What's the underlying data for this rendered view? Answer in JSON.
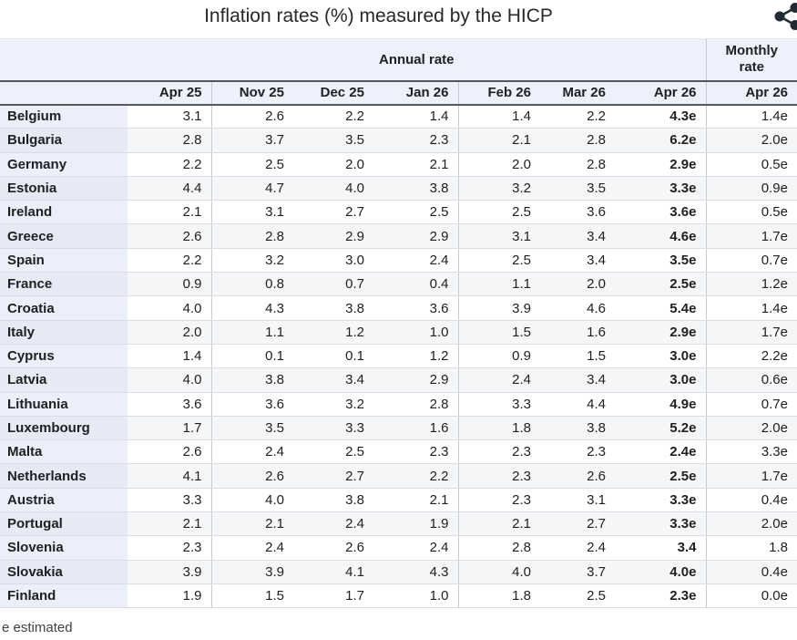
{
  "title": "Inflation rates (%) measured by the HICP",
  "share_icon": "share-icon",
  "chart_data": {
    "type": "table",
    "title": "Inflation rates (%) measured by the HICP",
    "group_headers": {
      "annual": "Annual rate",
      "monthly": "Monthly rate"
    },
    "columns": [
      "Apr 25",
      "Nov 25",
      "Dec 25",
      "Jan 26",
      "Feb 26",
      "Mar 26",
      "Apr 26",
      "Apr 26"
    ],
    "rows": [
      {
        "country": "Belgium",
        "values": [
          "3.1",
          "2.6",
          "2.2",
          "1.4",
          "1.4",
          "2.2",
          "4.3e",
          "1.4e"
        ]
      },
      {
        "country": "Bulgaria",
        "values": [
          "2.8",
          "3.7",
          "3.5",
          "2.3",
          "2.1",
          "2.8",
          "6.2e",
          "2.0e"
        ]
      },
      {
        "country": "Germany",
        "values": [
          "2.2",
          "2.5",
          "2.0",
          "2.1",
          "2.0",
          "2.8",
          "2.9e",
          "0.5e"
        ]
      },
      {
        "country": "Estonia",
        "values": [
          "4.4",
          "4.7",
          "4.0",
          "3.8",
          "3.2",
          "3.5",
          "3.3e",
          "0.9e"
        ]
      },
      {
        "country": "Ireland",
        "values": [
          "2.1",
          "3.1",
          "2.7",
          "2.5",
          "2.5",
          "3.6",
          "3.6e",
          "0.5e"
        ]
      },
      {
        "country": "Greece",
        "values": [
          "2.6",
          "2.8",
          "2.9",
          "2.9",
          "3.1",
          "3.4",
          "4.6e",
          "1.7e"
        ]
      },
      {
        "country": "Spain",
        "values": [
          "2.2",
          "3.2",
          "3.0",
          "2.4",
          "2.5",
          "3.4",
          "3.5e",
          "0.7e"
        ]
      },
      {
        "country": "France",
        "values": [
          "0.9",
          "0.8",
          "0.7",
          "0.4",
          "1.1",
          "2.0",
          "2.5e",
          "1.2e"
        ]
      },
      {
        "country": "Croatia",
        "values": [
          "4.0",
          "4.3",
          "3.8",
          "3.6",
          "3.9",
          "4.6",
          "5.4e",
          "1.4e"
        ]
      },
      {
        "country": "Italy",
        "values": [
          "2.0",
          "1.1",
          "1.2",
          "1.0",
          "1.5",
          "1.6",
          "2.9e",
          "1.7e"
        ]
      },
      {
        "country": "Cyprus",
        "values": [
          "1.4",
          "0.1",
          "0.1",
          "1.2",
          "0.9",
          "1.5",
          "3.0e",
          "2.2e"
        ]
      },
      {
        "country": "Latvia",
        "values": [
          "4.0",
          "3.8",
          "3.4",
          "2.9",
          "2.4",
          "3.4",
          "3.0e",
          "0.6e"
        ]
      },
      {
        "country": "Lithuania",
        "values": [
          "3.6",
          "3.6",
          "3.2",
          "2.8",
          "3.3",
          "4.4",
          "4.9e",
          "0.7e"
        ]
      },
      {
        "country": "Luxembourg",
        "values": [
          "1.7",
          "3.5",
          "3.3",
          "1.6",
          "1.8",
          "3.8",
          "5.2e",
          "2.0e"
        ]
      },
      {
        "country": "Malta",
        "values": [
          "2.6",
          "2.4",
          "2.5",
          "2.3",
          "2.3",
          "2.3",
          "2.4e",
          "3.3e"
        ]
      },
      {
        "country": "Netherlands",
        "values": [
          "4.1",
          "2.6",
          "2.7",
          "2.2",
          "2.3",
          "2.6",
          "2.5e",
          "1.7e"
        ]
      },
      {
        "country": "Austria",
        "values": [
          "3.3",
          "4.0",
          "3.8",
          "2.1",
          "2.3",
          "3.1",
          "3.3e",
          "0.4e"
        ]
      },
      {
        "country": "Portugal",
        "values": [
          "2.1",
          "2.1",
          "2.4",
          "1.9",
          "2.1",
          "2.7",
          "3.3e",
          "2.0e"
        ]
      },
      {
        "country": "Slovenia",
        "values": [
          "2.3",
          "2.4",
          "2.6",
          "2.4",
          "2.8",
          "2.4",
          "3.4",
          "1.8"
        ]
      },
      {
        "country": "Slovakia",
        "values": [
          "3.9",
          "3.9",
          "4.1",
          "4.3",
          "4.0",
          "3.7",
          "4.0e",
          "0.4e"
        ]
      },
      {
        "country": "Finland",
        "values": [
          "1.9",
          "1.5",
          "1.7",
          "1.0",
          "1.8",
          "2.5",
          "2.3e",
          "0.0e"
        ]
      }
    ],
    "footnote": "e estimated"
  },
  "colors": {
    "header_bg": "#ecf1fb",
    "row_header_bg": "#eaeffa",
    "stripe_bg": "#f5f6f8",
    "dark_border": "#54585c",
    "light_border": "#c8ccd2",
    "text": "#202122",
    "icon": "#222a33"
  }
}
